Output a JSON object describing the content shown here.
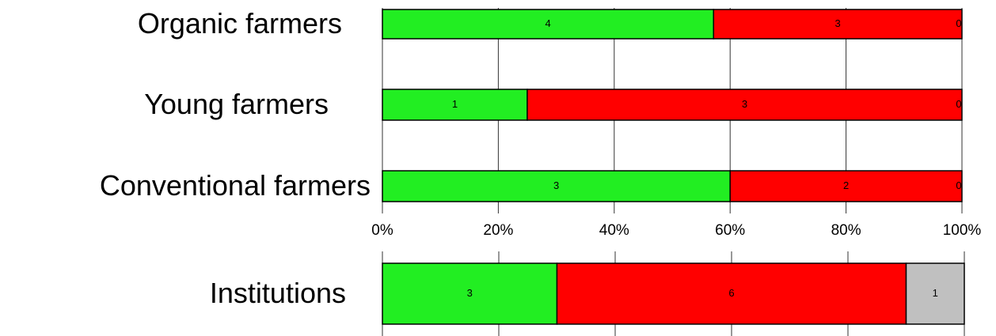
{
  "chart_data": [
    {
      "type": "bar",
      "orientation": "horizontal",
      "stack": "percent",
      "categories": [
        "Organic farmers",
        "Young farmers",
        "Conventional farmers"
      ],
      "series": [
        {
          "color": "#22ee22",
          "values": [
            4,
            1,
            3
          ]
        },
        {
          "color": "#ff0000",
          "values": [
            3,
            3,
            2
          ]
        },
        {
          "color": "#c0c0c0",
          "values": [
            0,
            0,
            0
          ]
        }
      ],
      "xlim": [
        0,
        100
      ],
      "xticks": [
        {
          "value": 0,
          "label": "0%"
        },
        {
          "value": 20,
          "label": "20%"
        },
        {
          "value": 40,
          "label": "40%"
        },
        {
          "value": 60,
          "label": "60%"
        },
        {
          "value": 80,
          "label": "80%"
        },
        {
          "value": 100,
          "label": "100%"
        }
      ],
      "grid": true
    },
    {
      "type": "bar",
      "orientation": "horizontal",
      "stack": "percent",
      "categories": [
        "Institutions"
      ],
      "series": [
        {
          "color": "#22ee22",
          "values": [
            3
          ]
        },
        {
          "color": "#ff0000",
          "values": [
            6
          ]
        },
        {
          "color": "#c0c0c0",
          "values": [
            1
          ]
        }
      ],
      "xlim": [
        0,
        100
      ],
      "xticks": [
        0,
        20,
        40,
        60,
        80,
        100
      ],
      "show_tick_labels": false,
      "grid": true
    }
  ]
}
